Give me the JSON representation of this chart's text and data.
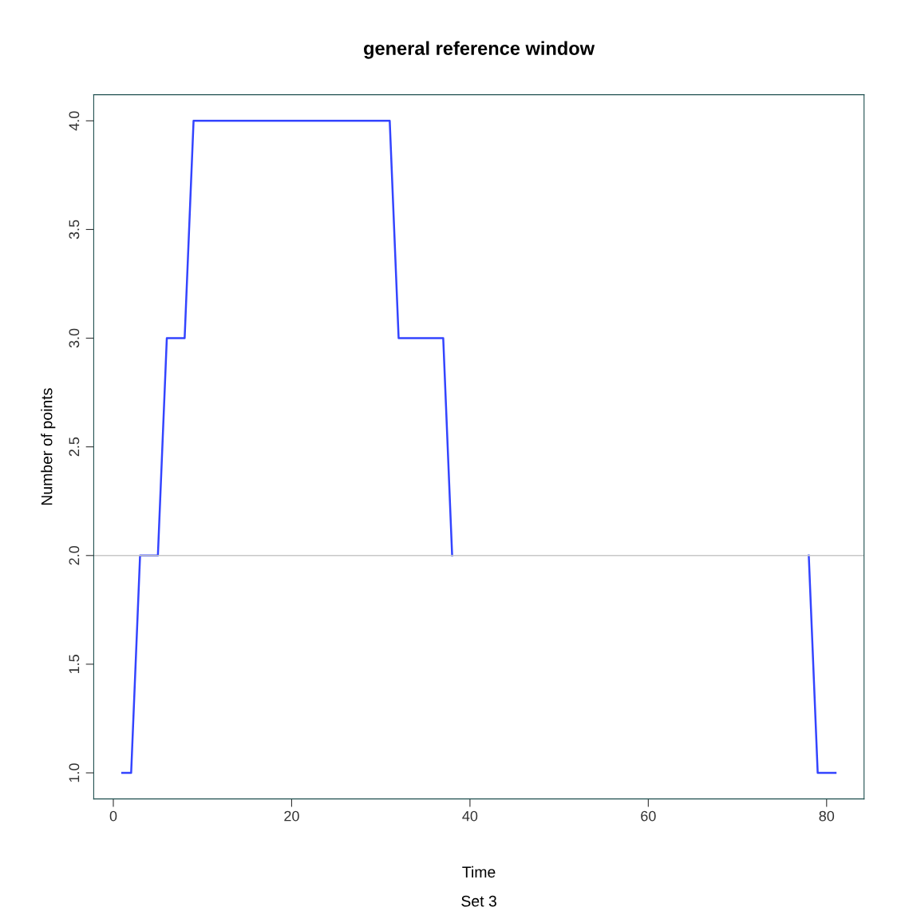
{
  "chart_data": {
    "type": "line",
    "title": "general reference window",
    "subtitle": "Set 3",
    "xlabel": "Time",
    "ylabel": "Number of points",
    "x": [
      1,
      2,
      3,
      4,
      5,
      6,
      7,
      8,
      9,
      31,
      32,
      37,
      38,
      39,
      77,
      78,
      79,
      80,
      81
    ],
    "series": [
      {
        "color": "#3344ff",
        "values": [
          1,
          1,
          2,
          2,
          2,
          3,
          3,
          3,
          4,
          4,
          3,
          3,
          2,
          null,
          null,
          2,
          1,
          1,
          1
        ]
      }
    ],
    "xlim": [
      -2.2,
      84.2
    ],
    "ylim": [
      0.88,
      4.12
    ],
    "xticks": [
      0,
      20,
      40,
      60,
      80
    ],
    "yticks": [
      {
        "value": 1,
        "label": "1.0"
      },
      {
        "value": 1.5,
        "label": "1.5"
      },
      {
        "value": 2,
        "label": "2.0"
      },
      {
        "value": 2.5,
        "label": "2.5"
      },
      {
        "value": 3,
        "label": "3.0"
      },
      {
        "value": 3.5,
        "label": "3.5"
      },
      {
        "value": 4,
        "label": "4.0"
      }
    ],
    "ref_lines": [
      {
        "axis": "y",
        "value": 2,
        "color": "#c8c8c8"
      }
    ],
    "grid": false,
    "legend": false,
    "marker": "none",
    "line_style": "solid"
  }
}
